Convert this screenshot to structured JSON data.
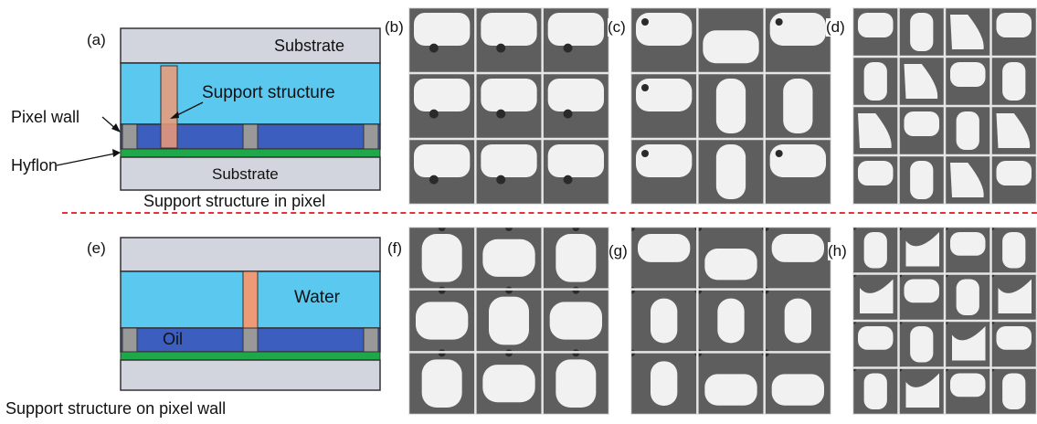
{
  "colors": {
    "substrate": "#d2d4de",
    "water": "#5ac8ef",
    "oil": "#3c5fbf",
    "hyflon": "#1fa84a",
    "support": "#ef9a76",
    "pixel_wall": "#999999",
    "divider": "#e8303a"
  },
  "top": {
    "panel_a": {
      "letter": "(a)",
      "substrate_top": "Substrate",
      "support_label": "Support structure",
      "pixel_wall_label": "Pixel wall",
      "hyflon_label": "Hyflon",
      "substrate_bottom": "Substrate",
      "caption": "Support structure in pixel"
    },
    "photo_letters": [
      "(b)",
      "(c)",
      "(d)"
    ]
  },
  "bottom": {
    "panel_e": {
      "letter": "(e)",
      "water_label": "Water",
      "oil_label": "Oil",
      "caption": "Support structure on pixel wall"
    },
    "photo_letters": [
      "(f)",
      "(g)",
      "(h)"
    ]
  }
}
